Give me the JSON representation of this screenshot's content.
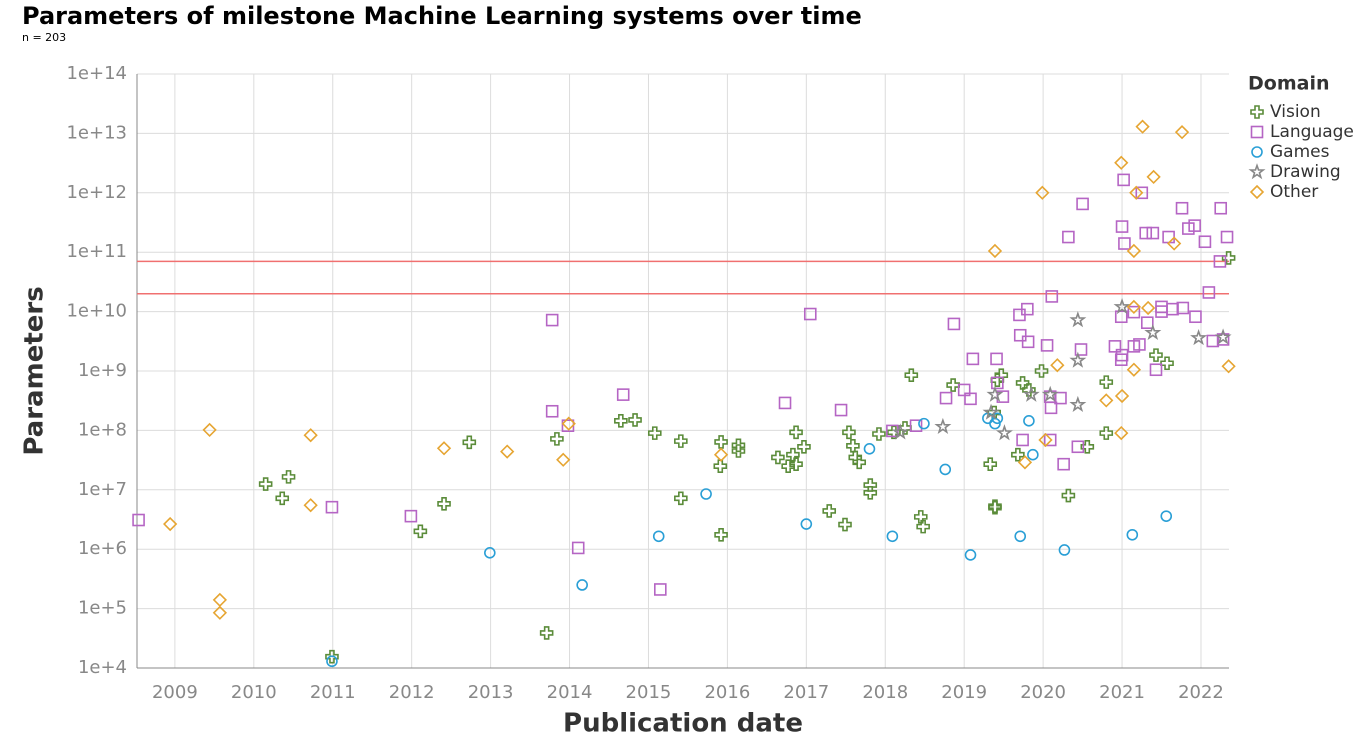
{
  "chart_data": {
    "type": "scatter",
    "title": "Parameters of milestone Machine Learning systems over time",
    "subtitle": "n = 203",
    "x_label": "Publication date",
    "y_label": "Parameters",
    "legend_title": "Domain",
    "legend_position": "right",
    "log_y": true,
    "grid": true,
    "xlim": [
      2008.52,
      2022.355
    ],
    "xticks": [
      2009,
      2010,
      2011,
      2012,
      2013,
      2014,
      2015,
      2016,
      2017,
      2018,
      2019,
      2020,
      2021,
      2022
    ],
    "ylim": [
      10000,
      100000000000000
    ],
    "yticks": [
      {
        "value": 10000,
        "label": "1e+4"
      },
      {
        "value": 100000,
        "label": "1e+5"
      },
      {
        "value": 1000000,
        "label": "1e+6"
      },
      {
        "value": 10000000,
        "label": "1e+7"
      },
      {
        "value": 100000000,
        "label": "1e+8"
      },
      {
        "value": 1000000000,
        "label": "1e+9"
      },
      {
        "value": 10000000000,
        "label": "1e+10"
      },
      {
        "value": 100000000000,
        "label": "1e+11"
      },
      {
        "value": 1000000000000,
        "label": "1e+12"
      },
      {
        "value": 10000000000000,
        "label": "1e+13"
      },
      {
        "value": 100000000000000,
        "label": "1e+14"
      }
    ],
    "hlines": [
      70000000000,
      20000000000
    ],
    "hline_color": "#f07070",
    "series": [
      {
        "name": "Vision",
        "color": "#5b8c3a",
        "marker": "cross",
        "x": [
          2010.15,
          2010.36,
          2010.44,
          2010.99,
          2012.11,
          2012.41,
          2012.73,
          2013.71,
          2013.84,
          2014.65,
          2014.83,
          2015.08,
          2015.41,
          2015.41,
          2015.92,
          2015.91,
          2015.92,
          2016.14,
          2016.14,
          2016.64,
          2016.77,
          2016.83,
          2016.87,
          2016.87,
          2016.97,
          2017.29,
          2017.49,
          2017.54,
          2017.59,
          2017.62,
          2017.67,
          2017.81,
          2017.81,
          2017.92,
          2018.11,
          2018.25,
          2018.33,
          2018.45,
          2018.48,
          2018.86,
          2019.33,
          2019.39,
          2019.39,
          2019.38,
          2019.42,
          2019.47,
          2019.68,
          2019.74,
          2019.82,
          2019.98,
          2020.32,
          2020.56,
          2020.8,
          2020.8,
          2021.43,
          2021.57,
          2022.35
        ],
        "values": [
          12500000,
          7200000,
          16500000,
          15500,
          2000000,
          5800000,
          63000000,
          39000,
          72000000,
          145000000,
          150000000,
          90000000,
          66000000,
          7200000,
          64000000,
          25000000,
          1750000,
          56000000,
          45000000,
          35000000,
          25000000,
          39000000,
          27000000,
          93000000,
          53000000,
          4400000,
          2600000,
          93000000,
          55000000,
          35000000,
          29000000,
          12000000,
          8900000,
          87000000,
          93000000,
          110000000,
          850000000,
          3500000,
          2400000,
          580000000,
          27000000,
          5300000,
          5000000,
          200000000,
          700000000,
          850000000,
          39000000,
          630000000,
          480000000,
          1000000000,
          8000000,
          53000000,
          650000000,
          90000000,
          1850000000,
          1350000000,
          80000000000
        ]
      },
      {
        "name": "Language",
        "color": "#b565c4",
        "marker": "square",
        "x": [
          2008.54,
          2010.99,
          2011.99,
          2013.78,
          2013.78,
          2013.98,
          2014.11,
          2014.68,
          2015.15,
          2016.73,
          2017.05,
          2017.44,
          2018.09,
          2018.39,
          2018.77,
          2018.87,
          2019.0,
          2019.08,
          2019.11,
          2019.41,
          2019.42,
          2019.49,
          2019.7,
          2019.71,
          2019.8,
          2019.81,
          2019.74,
          2020.05,
          2020.09,
          2020.1,
          2020.11,
          2020.09,
          2020.22,
          2020.26,
          2020.32,
          2020.44,
          2020.48,
          2020.5,
          2020.91,
          2020.99,
          2021.0,
          2020.99,
          2021.0,
          2021.03,
          2021.02,
          2021.15,
          2021.15,
          2021.22,
          2021.25,
          2021.3,
          2021.39,
          2021.32,
          2021.43,
          2021.5,
          2021.5,
          2021.59,
          2021.64,
          2021.77,
          2021.76,
          2021.84,
          2021.92,
          2021.93,
          2022.05,
          2022.1,
          2022.15,
          2022.24,
          2022.25,
          2022.33,
          2022.28
        ],
        "values": [
          3100000,
          5100000,
          3600000,
          7200000000,
          210000000,
          120000000,
          1050000,
          400000000,
          210000,
          290000000,
          9100000000,
          220000000,
          98000000,
          120000000,
          350000000,
          6200000000,
          480000000,
          340000000,
          1600000000,
          1600000000,
          630000000,
          370000000,
          8800000000,
          4000000000,
          11000000000,
          3100000000,
          69000000,
          2700000000,
          370000000,
          240000000,
          18000000000,
          69000000,
          350000000,
          27000000,
          180000000000,
          53000000,
          2300000000,
          650000000000,
          2600000000,
          8200000000,
          1850000000,
          1550000000,
          270000000000,
          140000000000,
          1650000000000,
          9800000000,
          2600000000,
          2800000000,
          1000000000000,
          210000000000,
          210000000000,
          6500000000,
          1050000000,
          12000000000,
          10000000000,
          180000000000,
          11000000000,
          11500000000,
          550000000000,
          250000000000,
          280000000000,
          8200000000,
          150000000000,
          21000000000,
          3200000000,
          70000000000,
          550000000000,
          180000000000,
          3400000000
        ]
      },
      {
        "name": "Games",
        "color": "#2a9fd6",
        "marker": "circle",
        "x": [
          2010.99,
          2012.99,
          2014.16,
          2015.13,
          2015.73,
          2017.0,
          2017.8,
          2018.09,
          2018.49,
          2018.76,
          2019.08,
          2019.3,
          2019.39,
          2019.42,
          2019.71,
          2019.82,
          2019.87,
          2020.27,
          2021.13,
          2021.56
        ],
        "values": [
          13000,
          870000,
          250000,
          1650000,
          8500000,
          2650000,
          49000000,
          1650000,
          130000000,
          22000000,
          800000,
          160000000,
          130000000,
          160000000,
          1650000,
          145000000,
          39000000,
          970000,
          1750000,
          3600000
        ]
      },
      {
        "name": "Drawing",
        "color": "#888888",
        "marker": "star",
        "x": [
          2018.19,
          2018.73,
          2019.34,
          2019.39,
          2019.51,
          2019.85,
          2020.09,
          2020.44,
          2020.44,
          2020.44,
          2021.0,
          2021.39,
          2021.97,
          2022.28
        ],
        "values": [
          93000000,
          115000000,
          200000000,
          400000000,
          90000000,
          400000000,
          400000000,
          7200000000,
          1500000000,
          270000000,
          12000000000,
          4400000000,
          3600000000,
          3700000000
        ]
      },
      {
        "name": "Other",
        "color": "#e6a532",
        "marker": "diamond",
        "x": [
          2008.94,
          2009.44,
          2009.57,
          2009.57,
          2010.72,
          2010.72,
          2012.41,
          2013.21,
          2013.92,
          2013.99,
          2015.92,
          2019.39,
          2019.77,
          2019.99,
          2020.03,
          2020.18,
          2020.8,
          2020.99,
          2021.0,
          2020.99,
          2021.15,
          2021.15,
          2021.15,
          2021.18,
          2021.26,
          2021.33,
          2021.4,
          2021.66,
          2021.76,
          2022.35
        ],
        "values": [
          2650000,
          102000000,
          140000,
          85000,
          83000000,
          5500000,
          50000000,
          44000000,
          32000000,
          130000000,
          39000000,
          105000000000,
          29000000,
          1000000000000,
          69000000,
          1250000000,
          320000000,
          3200000000000,
          380000000,
          90000000,
          105000000000,
          12000000000,
          1050000000,
          1000000000000,
          13000000000000,
          11500000000,
          1850000000000,
          140000000000,
          10500000000000,
          1200000000
        ]
      }
    ]
  }
}
